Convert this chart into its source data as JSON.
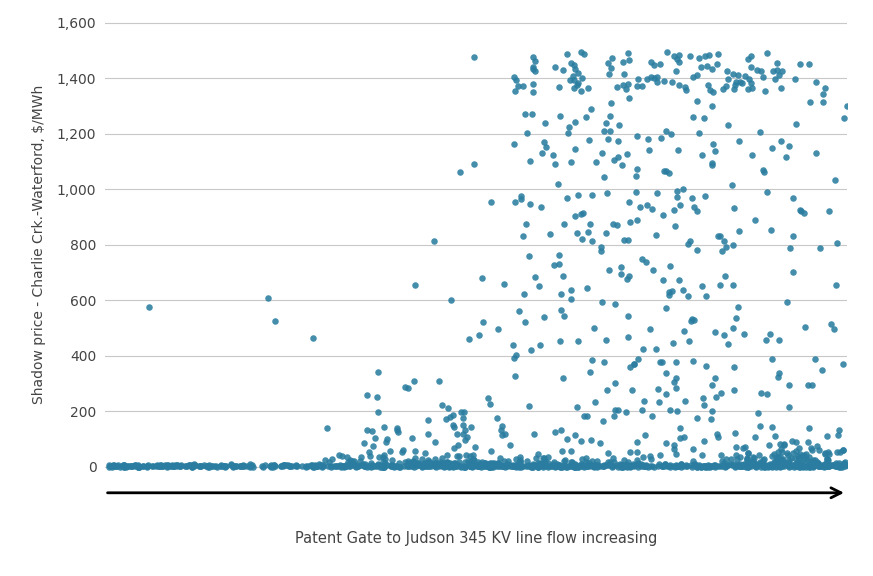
{
  "ylabel": "Shadow price - Charlie Crk.-Waterford, $/MWh",
  "xlabel": "Patent Gate to Judson 345 KV line flow increasing",
  "yticks": [
    0,
    200,
    400,
    600,
    800,
    1000,
    1200,
    1400,
    1600
  ],
  "ytick_labels": [
    "0",
    "200",
    "400",
    "600",
    "800",
    "1,000",
    "1,200",
    "1,400",
    "1,600"
  ],
  "ylim": [
    -20,
    1620
  ],
  "xlim": [
    0.0,
    1.0
  ],
  "dot_color": "#2A7DA0",
  "dot_size": 22,
  "dot_alpha": 0.88,
  "bg_color": "#FFFFFF",
  "grid_color": "#C8C8C8",
  "arrow_color": "#000000",
  "seed": 42
}
